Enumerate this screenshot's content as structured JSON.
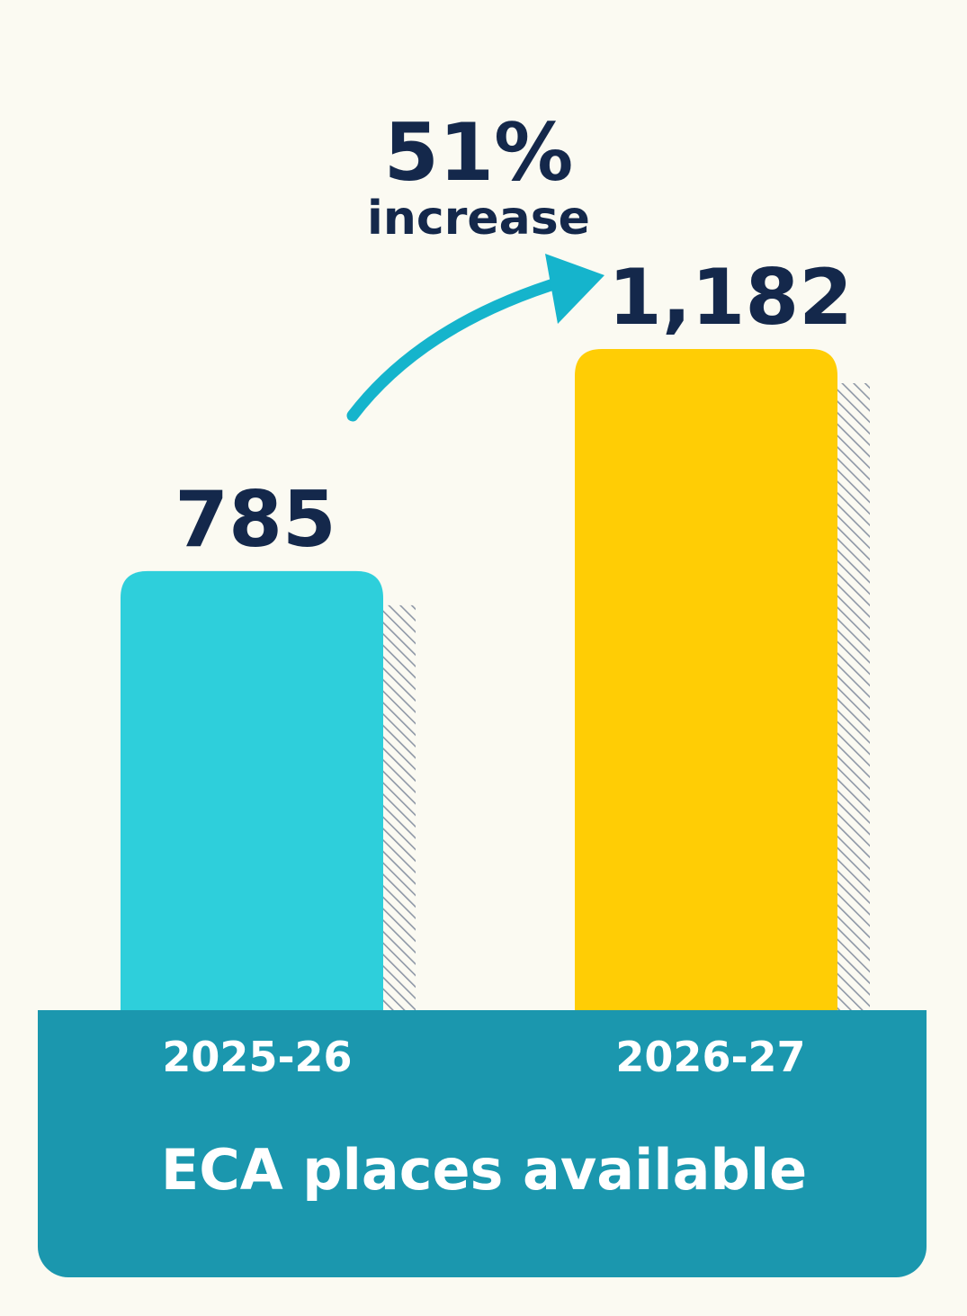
{
  "chart_data": {
    "type": "bar",
    "title": "",
    "xlabel": "ECA places available",
    "ylabel": "",
    "categories": [
      "2025-26",
      "2026-27"
    ],
    "values": [
      785,
      1182
    ],
    "value_labels": [
      "785",
      "1,182"
    ],
    "ylim": [
      0,
      1182
    ],
    "grid": false,
    "legend": "none",
    "annotation": {
      "value": "51%",
      "text": "increase",
      "from": "2025-26",
      "to": "2026-27"
    },
    "colors": {
      "bars": [
        "#2ecfdb",
        "#ffcd05"
      ],
      "base_band": "#1b97ae",
      "arrow": "#15b4cc",
      "text_dark": "#14284b",
      "text_light": "#ffffff",
      "background": "#fbfaf2",
      "shadow_hatch": "#8e97a6"
    }
  }
}
